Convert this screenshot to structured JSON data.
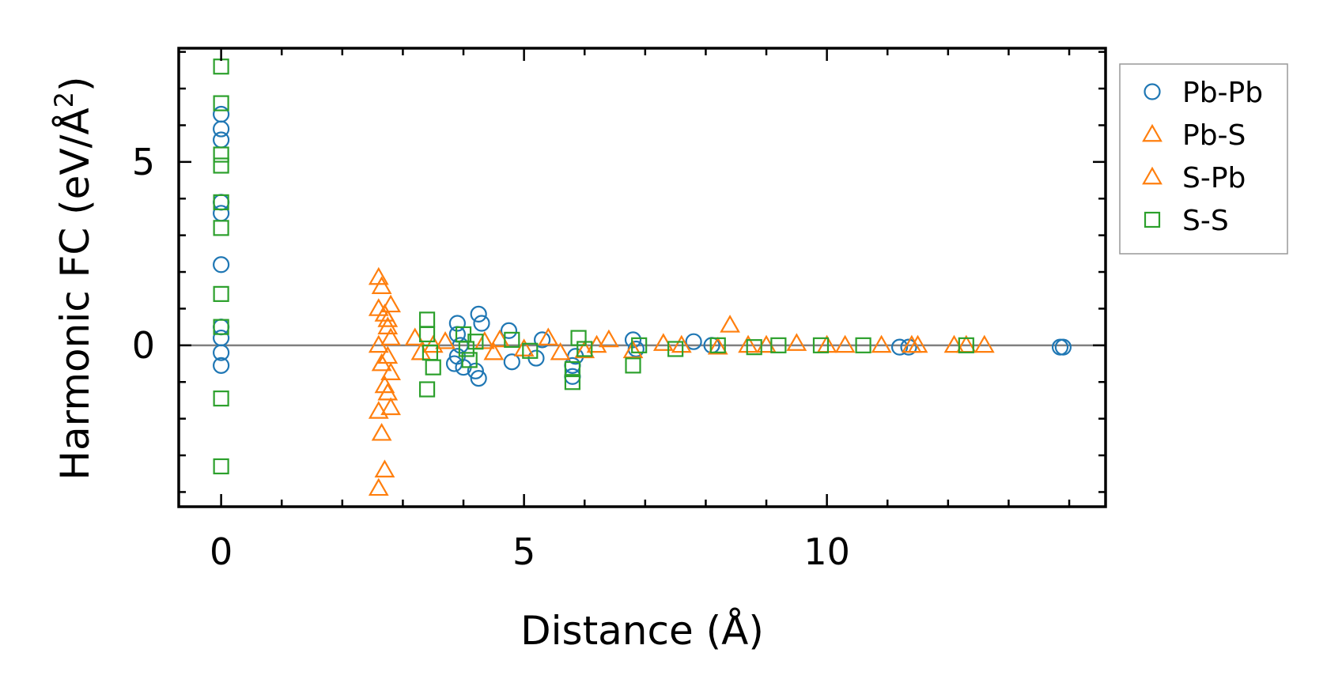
{
  "chart_data": {
    "type": "scatter",
    "xlabel": "Distance (Å)",
    "ylabel": "Harmonic FC (eV/Å",
    "ylabel_sup": "2",
    "ylabel_end": ")",
    "xlim": [
      -0.7,
      14.6
    ],
    "ylim": [
      -4.4,
      8.1
    ],
    "x_ticks": [
      0,
      5,
      10
    ],
    "x_tick_labels": [
      "0",
      "5",
      "10"
    ],
    "y_ticks": [
      0,
      5
    ],
    "y_tick_labels": [
      "0",
      "5"
    ],
    "x_minor_step": 1,
    "y_minor_step": 1,
    "zero_line": 0,
    "legend_position": "outside-right-top",
    "series": [
      {
        "name": "Pb-Pb",
        "marker": "circle",
        "color": "#1f77b4",
        "points": [
          [
            0,
            6.3
          ],
          [
            0,
            5.9
          ],
          [
            0,
            5.6
          ],
          [
            0,
            3.9
          ],
          [
            0,
            3.6
          ],
          [
            0,
            2.2
          ],
          [
            0,
            0.5
          ],
          [
            0,
            0.2
          ],
          [
            0,
            -0.2
          ],
          [
            0,
            -0.55
          ],
          [
            3.9,
            0.6
          ],
          [
            3.9,
            0.3
          ],
          [
            3.95,
            0.0
          ],
          [
            3.9,
            -0.3
          ],
          [
            4.0,
            -0.6
          ],
          [
            3.85,
            -0.5
          ],
          [
            4.25,
            0.85
          ],
          [
            4.3,
            0.6
          ],
          [
            4.2,
            -0.7
          ],
          [
            4.25,
            -0.9
          ],
          [
            4.75,
            0.4
          ],
          [
            4.8,
            -0.45
          ],
          [
            5.2,
            -0.35
          ],
          [
            5.3,
            0.15
          ],
          [
            5.8,
            -0.55
          ],
          [
            5.8,
            -0.85
          ],
          [
            5.85,
            -0.3
          ],
          [
            6.8,
            0.15
          ],
          [
            6.85,
            -0.1
          ],
          [
            7.8,
            0.1
          ],
          [
            8.1,
            0.0
          ],
          [
            11.2,
            -0.05
          ],
          [
            11.35,
            -0.05
          ],
          [
            13.85,
            -0.05
          ],
          [
            13.9,
            -0.05
          ]
        ]
      },
      {
        "name": "Pb-S",
        "marker": "triangle",
        "color": "#ff7f0e",
        "points": [
          [
            2.6,
            1.85
          ],
          [
            2.65,
            1.6
          ],
          [
            2.6,
            1.0
          ],
          [
            2.7,
            0.85
          ],
          [
            2.75,
            0.5
          ],
          [
            2.6,
            0.0
          ],
          [
            2.65,
            -0.5
          ],
          [
            2.7,
            -1.1
          ],
          [
            2.6,
            -1.8
          ],
          [
            2.65,
            -2.4
          ],
          [
            2.7,
            -3.4
          ],
          [
            2.6,
            -3.9
          ],
          [
            3.2,
            0.2
          ],
          [
            3.5,
            0.0
          ],
          [
            4.35,
            0.1
          ],
          [
            4.5,
            -0.2
          ],
          [
            5.4,
            0.2
          ],
          [
            6.0,
            -0.15
          ],
          [
            6.4,
            0.15
          ],
          [
            7.3,
            0.05
          ],
          [
            8.4,
            0.55
          ],
          [
            8.7,
            0.0
          ],
          [
            9.5,
            0.05
          ],
          [
            10.3,
            0.0
          ],
          [
            11.5,
            0.0
          ],
          [
            12.3,
            0.0
          ],
          [
            12.6,
            0.0
          ]
        ]
      },
      {
        "name": "S-Pb",
        "marker": "triangle",
        "color": "#ff7f0e",
        "points": [
          [
            2.8,
            1.1
          ],
          [
            2.75,
            0.7
          ],
          [
            2.8,
            0.2
          ],
          [
            2.75,
            -0.3
          ],
          [
            2.8,
            -0.75
          ],
          [
            2.75,
            -1.3
          ],
          [
            2.8,
            -1.7
          ],
          [
            3.3,
            -0.2
          ],
          [
            3.7,
            0.1
          ],
          [
            4.6,
            0.15
          ],
          [
            5.0,
            -0.1
          ],
          [
            5.6,
            -0.2
          ],
          [
            6.2,
            0.0
          ],
          [
            6.8,
            -0.15
          ],
          [
            7.6,
            0.0
          ],
          [
            8.2,
            -0.05
          ],
          [
            9.0,
            0.0
          ],
          [
            10.0,
            0.0
          ],
          [
            10.9,
            0.0
          ],
          [
            11.4,
            0.0
          ],
          [
            12.1,
            0.0
          ]
        ]
      },
      {
        "name": "S-S",
        "marker": "square",
        "color": "#2ca02c",
        "points": [
          [
            0,
            7.6
          ],
          [
            0,
            6.6
          ],
          [
            0,
            5.2
          ],
          [
            0,
            4.9
          ],
          [
            0,
            3.9
          ],
          [
            0,
            3.2
          ],
          [
            0,
            1.4
          ],
          [
            0,
            0.5
          ],
          [
            0,
            -1.45
          ],
          [
            0,
            -3.3
          ],
          [
            3.4,
            0.7
          ],
          [
            3.4,
            0.3
          ],
          [
            3.45,
            -0.2
          ],
          [
            3.5,
            -0.6
          ],
          [
            3.4,
            -1.2
          ],
          [
            4.0,
            0.3
          ],
          [
            4.05,
            -0.1
          ],
          [
            4.1,
            -0.4
          ],
          [
            4.2,
            0.1
          ],
          [
            4.8,
            0.15
          ],
          [
            5.1,
            -0.15
          ],
          [
            5.8,
            -0.65
          ],
          [
            5.8,
            -1.0
          ],
          [
            5.9,
            0.2
          ],
          [
            6.0,
            -0.1
          ],
          [
            6.8,
            -0.55
          ],
          [
            6.9,
            0.0
          ],
          [
            7.5,
            -0.1
          ],
          [
            8.2,
            0.0
          ],
          [
            8.8,
            -0.05
          ],
          [
            9.2,
            0.0
          ],
          [
            9.9,
            0.0
          ],
          [
            10.6,
            0.0
          ],
          [
            12.3,
            0.0
          ]
        ]
      }
    ]
  }
}
